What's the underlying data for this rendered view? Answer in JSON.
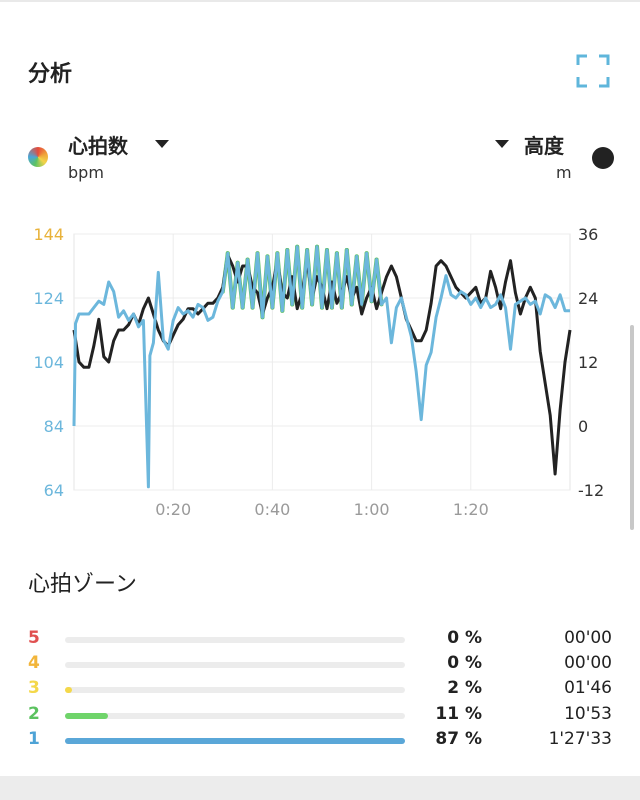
{
  "header": {
    "title": "分析"
  },
  "metrics": {
    "left": {
      "label": "心拍数",
      "unit": "bpm",
      "color": "#6cb7dc"
    },
    "right": {
      "label": "高度",
      "unit": "m",
      "color": "#222222"
    }
  },
  "chart_data": {
    "type": "line",
    "y_left_ticks": [
      "144",
      "124",
      "104",
      "84",
      "64"
    ],
    "y_left_range": [
      64,
      144
    ],
    "y_right_ticks": [
      "36",
      "24",
      "12",
      "0",
      "-12"
    ],
    "y_right_range": [
      -12,
      36
    ],
    "x_ticks": [
      "0:20",
      "0:40",
      "1:00",
      "1:20"
    ],
    "x_range_min": [
      0,
      100
    ],
    "series": [
      {
        "axis": "left",
        "color": "#6cb7dc",
        "points": [
          [
            0,
            84
          ],
          [
            0.3,
            116
          ],
          [
            1,
            119
          ],
          [
            3,
            119
          ],
          [
            4,
            121
          ],
          [
            5,
            123
          ],
          [
            6,
            122
          ],
          [
            7,
            129
          ],
          [
            8,
            126
          ],
          [
            9,
            118
          ],
          [
            10,
            120
          ],
          [
            11,
            117
          ],
          [
            12,
            119
          ],
          [
            13,
            115
          ],
          [
            14,
            117
          ],
          [
            15,
            65
          ],
          [
            15.3,
            106
          ],
          [
            16,
            110
          ],
          [
            17,
            132
          ],
          [
            18,
            111
          ],
          [
            19,
            108
          ],
          [
            20,
            117
          ],
          [
            21,
            121
          ],
          [
            22,
            119
          ],
          [
            23,
            120
          ],
          [
            24,
            118
          ],
          [
            25,
            122
          ],
          [
            26,
            121
          ],
          [
            27,
            117
          ],
          [
            28,
            118
          ],
          [
            29,
            123
          ],
          [
            30,
            126
          ],
          [
            31,
            138
          ],
          [
            32,
            121
          ],
          [
            33,
            135
          ],
          [
            34,
            121
          ],
          [
            35,
            136
          ],
          [
            36,
            121
          ],
          [
            37,
            138
          ],
          [
            38,
            118
          ],
          [
            39,
            137
          ],
          [
            40,
            121
          ],
          [
            41,
            138
          ],
          [
            42,
            120
          ],
          [
            43,
            139
          ],
          [
            44,
            122
          ],
          [
            45,
            140
          ],
          [
            46,
            121
          ],
          [
            47,
            139
          ],
          [
            48,
            122
          ],
          [
            49,
            140
          ],
          [
            50,
            121
          ],
          [
            51,
            139
          ],
          [
            52,
            121
          ],
          [
            53,
            138
          ],
          [
            54,
            121
          ],
          [
            55,
            139
          ],
          [
            56,
            122
          ],
          [
            57,
            137
          ],
          [
            58,
            122
          ],
          [
            59,
            138
          ],
          [
            60,
            123
          ],
          [
            61,
            136
          ],
          [
            62,
            122
          ],
          [
            63,
            124
          ],
          [
            64,
            110
          ],
          [
            65,
            121
          ],
          [
            66,
            124
          ],
          [
            67,
            118
          ],
          [
            68,
            112
          ],
          [
            69,
            101
          ],
          [
            70,
            86
          ],
          [
            71,
            103
          ],
          [
            72,
            107
          ],
          [
            73,
            118
          ],
          [
            74,
            124
          ],
          [
            75,
            131
          ],
          [
            76,
            125
          ],
          [
            77,
            124
          ],
          [
            78,
            126
          ],
          [
            79,
            125
          ],
          [
            80,
            122
          ],
          [
            81,
            124
          ],
          [
            82,
            121
          ],
          [
            83,
            124
          ],
          [
            84,
            121
          ],
          [
            85,
            122
          ],
          [
            86,
            125
          ],
          [
            87,
            121
          ],
          [
            88,
            108
          ],
          [
            89,
            122
          ],
          [
            90,
            123
          ],
          [
            91,
            124
          ],
          [
            92,
            122
          ],
          [
            93,
            123
          ],
          [
            94,
            119
          ],
          [
            95,
            125
          ],
          [
            96,
            124
          ],
          [
            97,
            121
          ],
          [
            98,
            125
          ],
          [
            99,
            120
          ],
          [
            100,
            120
          ]
        ]
      },
      {
        "axis": "right",
        "color": "#222222",
        "points": [
          [
            0,
            18
          ],
          [
            1,
            12
          ],
          [
            2,
            11
          ],
          [
            3,
            11
          ],
          [
            4,
            15
          ],
          [
            5,
            20
          ],
          [
            6,
            13
          ],
          [
            7,
            12
          ],
          [
            8,
            16
          ],
          [
            9,
            18
          ],
          [
            10,
            18
          ],
          [
            11,
            19
          ],
          [
            12,
            21
          ],
          [
            13,
            19
          ],
          [
            14,
            22
          ],
          [
            15,
            24
          ],
          [
            16,
            21
          ],
          [
            17,
            18
          ],
          [
            18,
            16
          ],
          [
            19,
            15
          ],
          [
            20,
            17
          ],
          [
            21,
            19
          ],
          [
            22,
            20
          ],
          [
            23,
            22
          ],
          [
            24,
            22
          ],
          [
            25,
            21
          ],
          [
            26,
            22
          ],
          [
            27,
            23
          ],
          [
            28,
            23
          ],
          [
            29,
            24
          ],
          [
            30,
            26
          ],
          [
            31,
            32
          ],
          [
            32,
            30
          ],
          [
            33,
            27
          ],
          [
            34,
            30
          ],
          [
            35,
            30
          ],
          [
            36,
            26
          ],
          [
            37,
            25
          ],
          [
            38,
            21
          ],
          [
            39,
            24
          ],
          [
            40,
            26
          ],
          [
            41,
            31
          ],
          [
            42,
            25
          ],
          [
            43,
            24
          ],
          [
            44,
            28
          ],
          [
            45,
            22
          ],
          [
            46,
            25
          ],
          [
            47,
            31
          ],
          [
            48,
            24
          ],
          [
            49,
            28
          ],
          [
            50,
            26
          ],
          [
            51,
            22
          ],
          [
            52,
            27
          ],
          [
            53,
            23
          ],
          [
            54,
            25
          ],
          [
            55,
            28
          ],
          [
            56,
            24
          ],
          [
            57,
            26
          ],
          [
            58,
            21
          ],
          [
            59,
            24
          ],
          [
            60,
            26
          ],
          [
            61,
            22
          ],
          [
            62,
            25
          ],
          [
            63,
            28
          ],
          [
            64,
            30
          ],
          [
            65,
            28
          ],
          [
            66,
            24
          ],
          [
            67,
            20
          ],
          [
            68,
            18
          ],
          [
            69,
            16
          ],
          [
            70,
            16
          ],
          [
            71,
            18
          ],
          [
            72,
            23
          ],
          [
            73,
            30
          ],
          [
            74,
            31
          ],
          [
            75,
            30
          ],
          [
            76,
            28
          ],
          [
            77,
            26
          ],
          [
            78,
            25
          ],
          [
            79,
            24
          ],
          [
            80,
            25
          ],
          [
            81,
            26
          ],
          [
            82,
            23
          ],
          [
            83,
            24
          ],
          [
            84,
            29
          ],
          [
            85,
            26
          ],
          [
            86,
            22
          ],
          [
            87,
            27
          ],
          [
            88,
            31
          ],
          [
            89,
            25
          ],
          [
            90,
            21
          ],
          [
            91,
            24
          ],
          [
            92,
            26
          ],
          [
            93,
            24
          ],
          [
            94,
            14
          ],
          [
            95,
            8
          ],
          [
            96,
            2
          ],
          [
            97,
            -9
          ],
          [
            98,
            3
          ],
          [
            99,
            12
          ],
          [
            100,
            18
          ]
        ]
      }
    ]
  },
  "zones": {
    "title": "心拍ゾーン",
    "items": [
      {
        "num": "5",
        "numColor": "#e05050",
        "pct": "0 %",
        "time": "00'00",
        "fill": 0,
        "fillColor": "#e05050"
      },
      {
        "num": "4",
        "numColor": "#f2b53a",
        "pct": "0 %",
        "time": "00'00",
        "fill": 0,
        "fillColor": "#f2b53a"
      },
      {
        "num": "3",
        "numColor": "#f4d84a",
        "pct": "2 %",
        "time": "01'46",
        "fill": 0.02,
        "fillColor": "#f4d84a"
      },
      {
        "num": "2",
        "numColor": "#5bc25f",
        "pct": "11 %",
        "time": "10'53",
        "fill": 0.125,
        "fillColor": "#6fd46a"
      },
      {
        "num": "1",
        "numColor": "#4ea3d6",
        "pct": "87 %",
        "time": "1'27'33",
        "fill": 1.0,
        "fillColor": "#5aa7d8"
      }
    ]
  }
}
